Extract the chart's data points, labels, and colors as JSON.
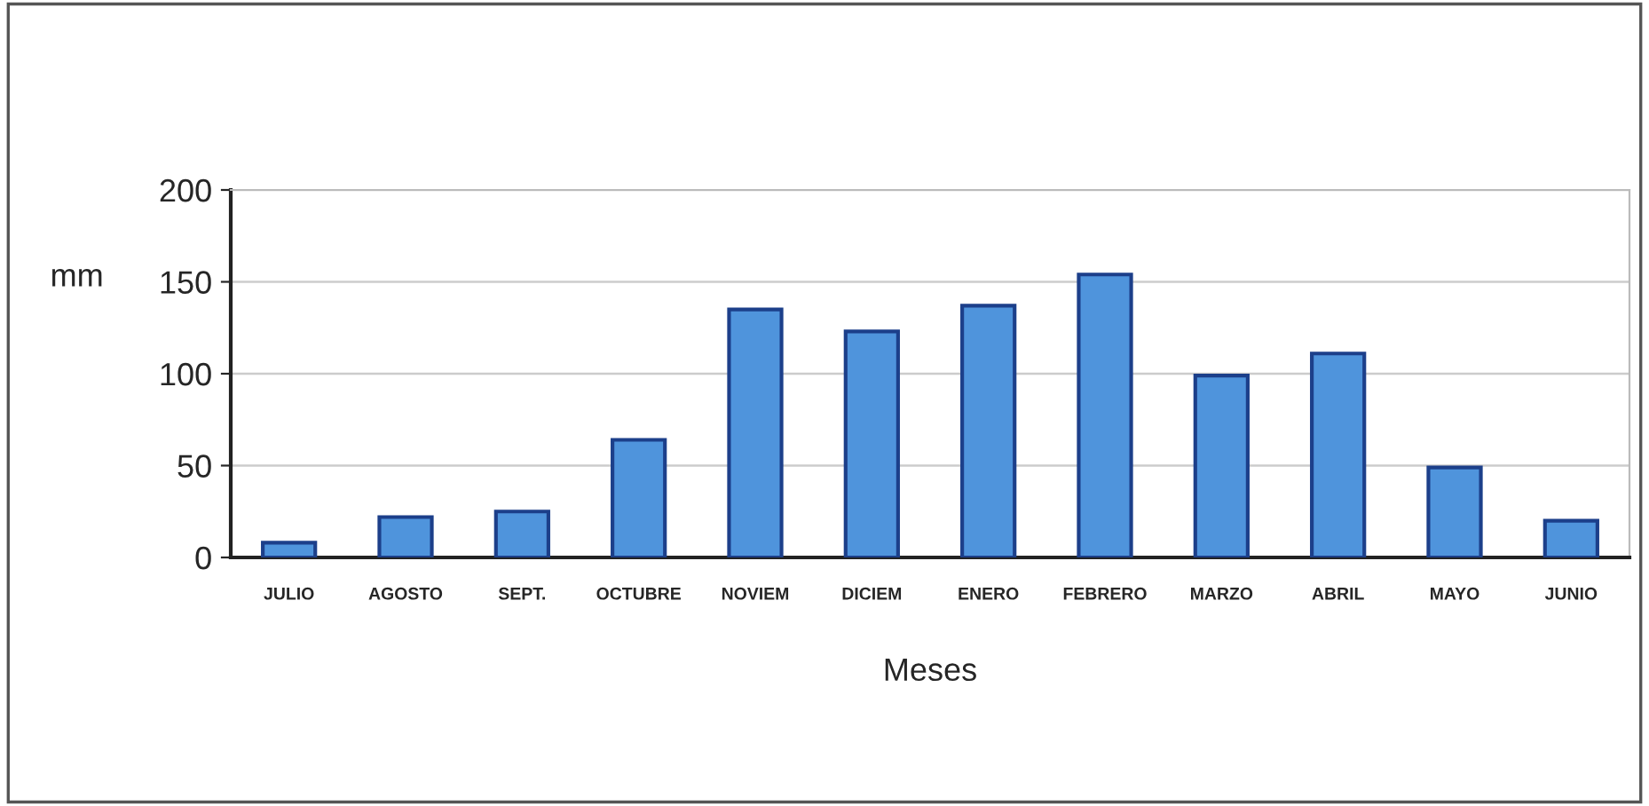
{
  "chart_data": {
    "type": "bar",
    "xlabel": "Meses",
    "ylabel": "mm",
    "categories": [
      "JULIO",
      "AGOSTO",
      "SEPT.",
      "OCTUBRE",
      "NOVIEM",
      "DICIEM",
      "ENERO",
      "FEBRERO",
      "MARZO",
      "ABRIL",
      "MAYO",
      "JUNIO"
    ],
    "values": [
      8,
      22,
      25,
      64,
      135,
      123,
      137,
      154,
      99,
      111,
      49,
      20
    ],
    "color": "#4f94dc",
    "ylim": [
      0,
      200
    ],
    "yticks": [
      0,
      50,
      100,
      150,
      200
    ],
    "grid": "y"
  }
}
